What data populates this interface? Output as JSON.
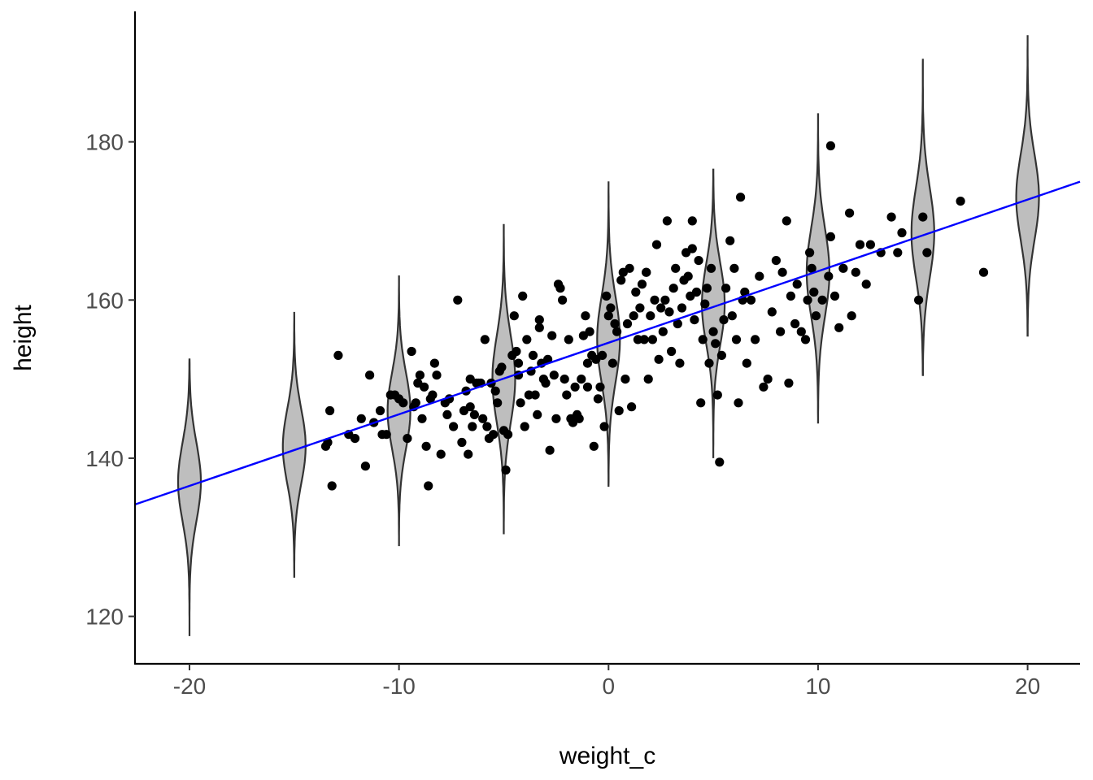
{
  "chart_data": {
    "type": "scatter",
    "title": "",
    "xlabel": "weight_c",
    "ylabel": "height",
    "xlim": [
      -22.6,
      22.5
    ],
    "ylim": [
      114,
      196.5
    ],
    "x_ticks": [
      -20,
      -10,
      0,
      10,
      20
    ],
    "x_tick_labels": [
      "-20",
      "-10",
      "0",
      "10",
      "20"
    ],
    "y_ticks": [
      120,
      140,
      160,
      180
    ],
    "y_tick_labels": [
      "120",
      "140",
      "160",
      "180"
    ],
    "grid": false,
    "legend": "none",
    "colors": {
      "points": "#000000",
      "regression_line": "#0000ff",
      "violin_fill": "#bebebe",
      "violin_stroke": "#333333",
      "axis": "#000000"
    },
    "regression_line": {
      "intercept": 154.6,
      "slope": 0.905
    },
    "violins": [
      {
        "x": -20,
        "y_min": 117.5,
        "y_max": 152.5,
        "center": 137
      },
      {
        "x": -15,
        "y_min": 125,
        "y_max": 158.5,
        "center": 141.5
      },
      {
        "x": -10,
        "y_min": 129,
        "y_max": 163,
        "center": 146
      },
      {
        "x": -5,
        "y_min": 130.5,
        "y_max": 169.5,
        "center": 150
      },
      {
        "x": 0,
        "y_min": 136.5,
        "y_max": 175,
        "center": 155
      },
      {
        "x": 5,
        "y_min": 140,
        "y_max": 176.5,
        "center": 159.5
      },
      {
        "x": 10,
        "y_min": 144.5,
        "y_max": 183.5,
        "center": 163.5
      },
      {
        "x": 15,
        "y_min": 150.5,
        "y_max": 190.5,
        "center": 168.5
      },
      {
        "x": 20,
        "y_min": 155.5,
        "y_max": 193.5,
        "center": 173
      }
    ],
    "series": [
      {
        "values": [
          [
            -13.3,
            146
          ],
          [
            -13.2,
            136.5
          ],
          [
            -13.5,
            141.5
          ],
          [
            -13.4,
            142
          ],
          [
            -12.9,
            153
          ],
          [
            -12.4,
            143
          ],
          [
            -12.1,
            142.5
          ],
          [
            -11.8,
            145
          ],
          [
            -11.6,
            139
          ],
          [
            -11.4,
            150.5
          ],
          [
            -11.2,
            144.5
          ],
          [
            -10.9,
            146
          ],
          [
            -10.8,
            143
          ],
          [
            -10.6,
            143
          ],
          [
            -10.4,
            148
          ],
          [
            -10.2,
            148
          ],
          [
            -10.0,
            147.5
          ],
          [
            -9.8,
            147
          ],
          [
            -9.6,
            142.5
          ],
          [
            -9.4,
            153.5
          ],
          [
            -9.3,
            146.5
          ],
          [
            -9.2,
            147
          ],
          [
            -9.1,
            149.5
          ],
          [
            -9.0,
            150.5
          ],
          [
            -8.9,
            145
          ],
          [
            -8.7,
            141.5
          ],
          [
            -8.6,
            136.5
          ],
          [
            -8.5,
            147.5
          ],
          [
            -8.4,
            148
          ],
          [
            -8.3,
            152
          ],
          [
            -8.2,
            150.5
          ],
          [
            -8.0,
            140.5
          ],
          [
            -7.8,
            147
          ],
          [
            -7.6,
            147.5
          ],
          [
            -7.4,
            144
          ],
          [
            -7.2,
            160
          ],
          [
            -7.0,
            142
          ],
          [
            -6.9,
            146
          ],
          [
            -6.8,
            148.5
          ],
          [
            -6.7,
            140.5
          ],
          [
            -6.6,
            146.5
          ],
          [
            -6.5,
            144
          ],
          [
            -6.4,
            145.5
          ],
          [
            -6.3,
            149.5
          ],
          [
            -6.2,
            149.5
          ],
          [
            -6.1,
            149.5
          ],
          [
            -6.0,
            145
          ],
          [
            -5.9,
            155
          ],
          [
            -5.8,
            144
          ],
          [
            -5.7,
            142.5
          ],
          [
            -5.6,
            149.5
          ],
          [
            -5.5,
            143
          ],
          [
            -5.4,
            148.5
          ],
          [
            -5.3,
            147
          ],
          [
            -5.2,
            151
          ],
          [
            -5.1,
            151.5
          ],
          [
            -5.0,
            143.5
          ],
          [
            -4.9,
            138.5
          ],
          [
            -4.8,
            143
          ],
          [
            -4.6,
            153
          ],
          [
            -4.5,
            158
          ],
          [
            -4.4,
            153.5
          ],
          [
            -4.3,
            152
          ],
          [
            -4.2,
            147
          ],
          [
            -4.1,
            160.5
          ],
          [
            -4.0,
            144
          ],
          [
            -3.9,
            155
          ],
          [
            -3.8,
            148
          ],
          [
            -3.7,
            151
          ],
          [
            -3.6,
            153
          ],
          [
            -3.5,
            148
          ],
          [
            -3.4,
            145.5
          ],
          [
            -3.3,
            157.5
          ],
          [
            -3.2,
            152
          ],
          [
            -3.1,
            150
          ],
          [
            -3.0,
            149.5
          ],
          [
            -2.9,
            152.5
          ],
          [
            -2.8,
            141
          ],
          [
            -2.7,
            155.5
          ],
          [
            -2.6,
            150.5
          ],
          [
            -2.5,
            145
          ],
          [
            -2.4,
            162
          ],
          [
            -2.3,
            161.5
          ],
          [
            -2.2,
            160
          ],
          [
            -2.1,
            150
          ],
          [
            -2.0,
            148
          ],
          [
            -1.9,
            155
          ],
          [
            -1.8,
            145
          ],
          [
            -1.7,
            144.5
          ],
          [
            -1.6,
            149
          ],
          [
            -1.5,
            145.5
          ],
          [
            -1.4,
            145
          ],
          [
            -1.3,
            150
          ],
          [
            -1.2,
            155.5
          ],
          [
            -1.1,
            158
          ],
          [
            -1.0,
            149
          ],
          [
            -0.9,
            156
          ],
          [
            -0.8,
            153
          ],
          [
            -0.7,
            141.5
          ],
          [
            -0.6,
            152.5
          ],
          [
            -0.5,
            147.5
          ],
          [
            -0.4,
            149
          ],
          [
            -0.3,
            153
          ],
          [
            -0.2,
            144
          ],
          [
            -0.1,
            160.5
          ],
          [
            0.0,
            158
          ],
          [
            0.1,
            159
          ],
          [
            0.2,
            152
          ],
          [
            0.3,
            157
          ],
          [
            0.4,
            156
          ],
          [
            0.5,
            146
          ],
          [
            0.6,
            162.5
          ],
          [
            0.7,
            163.5
          ],
          [
            0.8,
            150
          ],
          [
            0.9,
            157
          ],
          [
            1.0,
            164
          ],
          [
            1.1,
            146.5
          ],
          [
            1.2,
            158
          ],
          [
            1.3,
            161
          ],
          [
            1.4,
            155
          ],
          [
            1.5,
            159
          ],
          [
            1.6,
            162
          ],
          [
            1.7,
            155
          ],
          [
            1.8,
            163.5
          ],
          [
            1.9,
            150
          ],
          [
            2.0,
            158
          ],
          [
            2.1,
            155
          ],
          [
            2.2,
            160
          ],
          [
            2.3,
            167
          ],
          [
            2.4,
            152.5
          ],
          [
            2.5,
            159
          ],
          [
            2.6,
            156
          ],
          [
            2.7,
            160
          ],
          [
            2.8,
            170
          ],
          [
            2.9,
            158.5
          ],
          [
            3.0,
            153.5
          ],
          [
            3.1,
            161.5
          ],
          [
            3.2,
            164
          ],
          [
            3.3,
            157
          ],
          [
            3.4,
            152
          ],
          [
            3.5,
            159
          ],
          [
            3.6,
            162.5
          ],
          [
            3.7,
            166
          ],
          [
            3.8,
            163
          ],
          [
            3.9,
            160.5
          ],
          [
            4.0,
            170
          ],
          [
            4.1,
            157.5
          ],
          [
            4.2,
            161
          ],
          [
            4.3,
            165
          ],
          [
            4.4,
            147
          ],
          [
            4.5,
            155
          ],
          [
            4.6,
            159.5
          ],
          [
            4.7,
            161.5
          ],
          [
            4.8,
            152
          ],
          [
            4.9,
            164
          ],
          [
            5.0,
            156
          ],
          [
            5.1,
            154.5
          ],
          [
            5.2,
            148
          ],
          [
            5.3,
            139.5
          ],
          [
            5.4,
            153
          ],
          [
            5.5,
            157.5
          ],
          [
            5.6,
            161.5
          ],
          [
            5.8,
            167.5
          ],
          [
            5.9,
            158
          ],
          [
            6.0,
            164
          ],
          [
            6.1,
            155
          ],
          [
            6.2,
            147
          ],
          [
            6.3,
            173
          ],
          [
            6.4,
            160
          ],
          [
            6.5,
            161
          ],
          [
            6.6,
            152
          ],
          [
            6.8,
            160
          ],
          [
            7.0,
            155
          ],
          [
            7.2,
            163
          ],
          [
            7.4,
            149
          ],
          [
            7.6,
            150
          ],
          [
            7.8,
            158.5
          ],
          [
            8.0,
            165
          ],
          [
            8.2,
            156
          ],
          [
            8.3,
            163.5
          ],
          [
            8.5,
            170
          ],
          [
            8.6,
            149.5
          ],
          [
            8.7,
            160.5
          ],
          [
            8.9,
            157
          ],
          [
            9.0,
            162
          ],
          [
            9.2,
            156
          ],
          [
            9.4,
            155
          ],
          [
            9.5,
            160
          ],
          [
            9.6,
            166
          ],
          [
            9.7,
            164
          ],
          [
            9.8,
            161
          ],
          [
            9.9,
            158
          ],
          [
            10.2,
            160
          ],
          [
            10.5,
            163
          ],
          [
            10.6,
            168
          ],
          [
            10.8,
            160.5
          ],
          [
            11.0,
            156.5
          ],
          [
            11.2,
            164
          ],
          [
            11.5,
            171
          ],
          [
            11.6,
            158
          ],
          [
            11.8,
            163.5
          ],
          [
            12.0,
            167
          ],
          [
            12.3,
            162
          ],
          [
            12.5,
            167
          ],
          [
            13.0,
            166
          ],
          [
            13.5,
            170.5
          ],
          [
            13.8,
            166
          ],
          [
            14.0,
            168.5
          ],
          [
            14.8,
            160
          ],
          [
            15.0,
            170.5
          ],
          [
            15.2,
            166
          ],
          [
            16.8,
            172.5
          ],
          [
            17.9,
            163.5
          ],
          [
            10.6,
            179.5
          ],
          [
            4.0,
            166.5
          ],
          [
            1.8,
            163.5
          ],
          [
            -1.0,
            152
          ],
          [
            -3.3,
            156.5
          ],
          [
            -4.3,
            150.5
          ],
          [
            -6.6,
            150
          ],
          [
            -7.7,
            145.5
          ],
          [
            -8.8,
            149
          ]
        ]
      }
    ]
  }
}
